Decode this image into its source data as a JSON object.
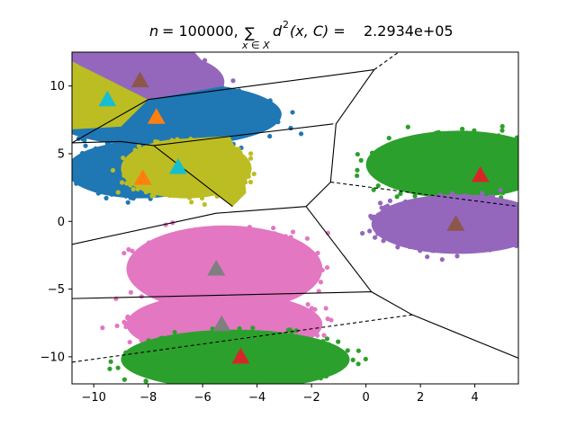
{
  "chart_data": {
    "type": "scatter",
    "title": {
      "n_label": "n",
      "n_value": "= 100000,",
      "sum_symbol": "∑",
      "sum_subscript": "x ∈ X",
      "expression": "d",
      "exponent": "2",
      "args": "(x, C) =",
      "value": "2.2934e+05"
    },
    "xlabel": "",
    "ylabel": "",
    "xlim": [
      -10.8,
      5.6
    ],
    "ylim": [
      -12.0,
      12.5
    ],
    "x_ticks": [
      -10,
      -8,
      -6,
      -4,
      -2,
      0,
      2,
      4
    ],
    "x_tick_labels": [
      "−10",
      "−8",
      "−6",
      "−4",
      "−2",
      "0",
      "2",
      "4"
    ],
    "y_ticks": [
      -10,
      -5,
      0,
      5,
      10
    ],
    "y_tick_labels": [
      "−10",
      "−5",
      "0",
      "5",
      "10"
    ],
    "grid": false,
    "colors": {
      "blue": "#1f77b4",
      "orange": "#ff7f0e",
      "green": "#2ca02c",
      "red": "#d62728",
      "purple": "#9467bd",
      "brown": "#8c564b",
      "pink": "#e377c2",
      "gray": "#7f7f7f",
      "olive": "#bcbd22",
      "cyan": "#17becf"
    },
    "clusters": [
      {
        "color": "purple",
        "cx": -8.1,
        "cy": 10.3,
        "rx": 2.9,
        "ry": 2.3
      },
      {
        "color": "olive",
        "cx": -9.7,
        "cy": 9.0,
        "rx": 1.6,
        "ry": 2.6
      },
      {
        "color": "blue",
        "cx": -7.4,
        "cy": 7.9,
        "rx": 4.3,
        "ry": 2.4
      },
      {
        "color": "blue",
        "cx": -8.3,
        "cy": 3.8,
        "rx": 2.7,
        "ry": 2.1
      },
      {
        "color": "olive",
        "cx": -6.6,
        "cy": 3.9,
        "rx": 2.4,
        "ry": 2.2
      },
      {
        "color": "green",
        "cx": 3.4,
        "cy": 4.2,
        "rx": 3.4,
        "ry": 2.5
      },
      {
        "color": "purple",
        "cx": 3.4,
        "cy": -0.2,
        "rx": 3.2,
        "ry": 2.2
      },
      {
        "color": "pink",
        "cx": -5.2,
        "cy": -3.5,
        "rx": 3.6,
        "ry": 3.2
      },
      {
        "color": "pink",
        "cx": -5.2,
        "cy": -7.6,
        "rx": 3.6,
        "ry": 2.3
      },
      {
        "color": "green",
        "cx": -4.8,
        "cy": -10.2,
        "rx": 4.2,
        "ry": 2.2
      }
    ],
    "centroids": [
      {
        "x": -8.3,
        "y": 10.4,
        "color": "brown"
      },
      {
        "x": -9.5,
        "y": 9.0,
        "color": "cyan"
      },
      {
        "x": -7.7,
        "y": 7.7,
        "color": "orange"
      },
      {
        "x": -8.2,
        "y": 3.2,
        "color": "orange"
      },
      {
        "x": -6.9,
        "y": 4.0,
        "color": "cyan"
      },
      {
        "x": 4.2,
        "y": 3.4,
        "color": "red"
      },
      {
        "x": 3.3,
        "y": -0.2,
        "color": "brown"
      },
      {
        "x": -5.5,
        "y": -3.5,
        "color": "gray"
      },
      {
        "x": -5.3,
        "y": -7.6,
        "color": "gray"
      },
      {
        "x": -4.6,
        "y": -10.0,
        "color": "red"
      }
    ],
    "boundaries_solid": [
      [
        [
          -10.8,
          5.8
        ],
        [
          -8.0,
          9.0
        ],
        [
          -8.0,
          9.0
        ]
      ],
      [
        [
          -8.0,
          9.0
        ],
        [
          0.3,
          11.2
        ]
      ],
      [
        [
          -10.8,
          5.8
        ],
        [
          -9.0,
          5.9
        ],
        [
          -7.8,
          5.6
        ],
        [
          -1.2,
          7.2
        ]
      ],
      [
        [
          -7.8,
          5.6
        ],
        [
          -4.9,
          1.1
        ]
      ],
      [
        [
          -10.8,
          -1.7
        ],
        [
          -5.5,
          0.6
        ],
        [
          -2.2,
          1.1
        ],
        [
          -1.3,
          2.9
        ]
      ],
      [
        [
          -1.3,
          2.9
        ],
        [
          -1.1,
          7.2
        ],
        [
          0.3,
          11.2
        ]
      ],
      [
        [
          -2.2,
          1.1
        ],
        [
          0.2,
          -5.2
        ]
      ],
      [
        [
          -10.8,
          -5.7
        ],
        [
          0.2,
          -5.2
        ],
        [
          1.7,
          -6.9
        ],
        [
          5.6,
          -10.1
        ]
      ]
    ],
    "boundaries_dashed": [
      [
        [
          -1.3,
          2.9
        ],
        [
          5.6,
          1.1
        ]
      ],
      [
        [
          0.3,
          11.2
        ],
        [
          1.2,
          12.5
        ]
      ],
      [
        [
          -10.8,
          -10.4
        ],
        [
          1.7,
          -6.9
        ]
      ]
    ],
    "fill_regions": [
      {
        "color": "purple",
        "points": [
          [
            -10.8,
            12.5
          ],
          [
            -6.3,
            12.5
          ],
          [
            -5.2,
            10.0
          ],
          [
            -8.0,
            9.0
          ],
          [
            -10.8,
            11.8
          ]
        ]
      },
      {
        "color": "olive",
        "points": [
          [
            -10.8,
            11.8
          ],
          [
            -8.0,
            9.0
          ],
          [
            -9.0,
            7.0
          ],
          [
            -10.8,
            6.8
          ]
        ]
      },
      {
        "color": "olive",
        "points": [
          [
            -7.8,
            5.6
          ],
          [
            -4.9,
            1.1
          ],
          [
            -4.4,
            2.1
          ],
          [
            -4.5,
            4.1
          ],
          [
            -5.0,
            6.3
          ],
          [
            -6.8,
            6.1
          ]
        ]
      }
    ]
  }
}
